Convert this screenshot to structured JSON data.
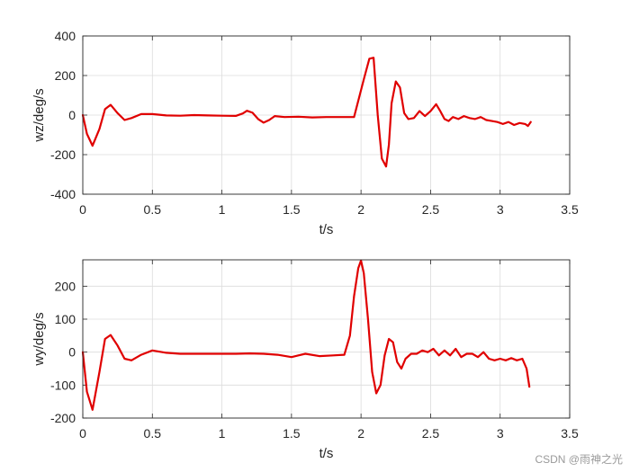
{
  "chart_data": [
    {
      "type": "line",
      "xlabel": "t/s",
      "ylabel": "wz/deg/s",
      "xlim": [
        0,
        3.5
      ],
      "ylim": [
        -400,
        400
      ],
      "xticks": [
        "0",
        "0.5",
        "1",
        "1.5",
        "2",
        "2.5",
        "3",
        "3.5"
      ],
      "yticks": [
        "-400",
        "-200",
        "0",
        "200",
        "400"
      ],
      "grid": true,
      "series": [
        {
          "color": "#e00000",
          "x": [
            0,
            0.03,
            0.07,
            0.12,
            0.16,
            0.2,
            0.25,
            0.3,
            0.35,
            0.42,
            0.5,
            0.6,
            0.7,
            0.8,
            0.9,
            1.0,
            1.1,
            1.15,
            1.18,
            1.22,
            1.26,
            1.3,
            1.34,
            1.38,
            1.45,
            1.55,
            1.65,
            1.75,
            1.85,
            1.95,
            2.02,
            2.06,
            2.09,
            2.12,
            2.15,
            2.18,
            2.2,
            2.22,
            2.25,
            2.28,
            2.31,
            2.34,
            2.38,
            2.42,
            2.46,
            2.5,
            2.54,
            2.57,
            2.6,
            2.63,
            2.66,
            2.7,
            2.74,
            2.78,
            2.82,
            2.86,
            2.9,
            2.94,
            2.98,
            3.02,
            3.06,
            3.1,
            3.14,
            3.18,
            3.2,
            3.22
          ],
          "y": [
            0,
            -95,
            -155,
            -70,
            30,
            52,
            10,
            -25,
            -15,
            5,
            5,
            -2,
            -3,
            0,
            -2,
            -3,
            -4,
            8,
            22,
            12,
            -20,
            -38,
            -25,
            -5,
            -10,
            -8,
            -12,
            -10,
            -10,
            -10,
            180,
            285,
            290,
            0,
            -220,
            -260,
            -150,
            60,
            170,
            140,
            10,
            -20,
            -15,
            20,
            -5,
            20,
            55,
            20,
            -20,
            -30,
            -10,
            -20,
            -5,
            -15,
            -20,
            -10,
            -25,
            -30,
            -35,
            -45,
            -35,
            -50,
            -40,
            -45,
            -55,
            -35
          ]
        }
      ]
    },
    {
      "type": "line",
      "xlabel": "t/s",
      "ylabel": "wy/deg/s",
      "xlim": [
        0,
        3.5
      ],
      "ylim": [
        -200,
        280
      ],
      "xticks": [
        "0",
        "0.5",
        "1",
        "1.5",
        "2",
        "2.5",
        "3",
        "3.5"
      ],
      "yticks": [
        "-200",
        "-100",
        "0",
        "100",
        "200"
      ],
      "grid": true,
      "series": [
        {
          "color": "#e00000",
          "x": [
            0,
            0.03,
            0.07,
            0.12,
            0.16,
            0.2,
            0.25,
            0.3,
            0.35,
            0.42,
            0.5,
            0.6,
            0.7,
            0.8,
            0.9,
            1.0,
            1.1,
            1.2,
            1.3,
            1.4,
            1.5,
            1.55,
            1.6,
            1.7,
            1.8,
            1.88,
            1.92,
            1.95,
            1.98,
            2.0,
            2.02,
            2.05,
            2.08,
            2.11,
            2.14,
            2.17,
            2.2,
            2.23,
            2.26,
            2.29,
            2.32,
            2.36,
            2.4,
            2.44,
            2.48,
            2.52,
            2.56,
            2.6,
            2.64,
            2.68,
            2.72,
            2.76,
            2.8,
            2.84,
            2.88,
            2.92,
            2.96,
            3.0,
            3.04,
            3.08,
            3.12,
            3.16,
            3.19,
            3.21
          ],
          "y": [
            0,
            -120,
            -175,
            -60,
            40,
            52,
            20,
            -20,
            -25,
            -8,
            5,
            -2,
            -5,
            -5,
            -5,
            -5,
            -5,
            -4,
            -5,
            -8,
            -15,
            -10,
            -5,
            -12,
            -10,
            -8,
            50,
            170,
            255,
            278,
            240,
            100,
            -60,
            -125,
            -100,
            -10,
            40,
            30,
            -30,
            -50,
            -20,
            -5,
            -5,
            5,
            0,
            10,
            -10,
            5,
            -10,
            10,
            -15,
            -5,
            -5,
            -15,
            0,
            -20,
            -25,
            -20,
            -25,
            -18,
            -25,
            -20,
            -50,
            -105
          ]
        }
      ]
    }
  ],
  "watermark": "CSDN @雨神之光"
}
